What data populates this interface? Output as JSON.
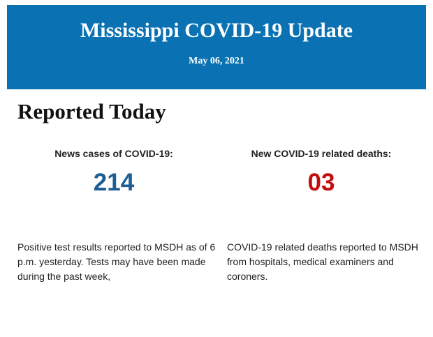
{
  "header": {
    "title": "Mississippi COVID-19 Update",
    "date": "May 06, 2021"
  },
  "section": {
    "title": "Reported Today",
    "stats": [
      {
        "label": "News cases of COVID-19:",
        "value": "214",
        "description": "Positive test results reported to MSDH as of 6 p.m. yesterday. Tests may have been made during the past week,"
      },
      {
        "label": "New COVID-19 related deaths:",
        "value": "03",
        "description": "COVID-19 related deaths reported to MSDH from hospitals, medical examiners and coroners."
      }
    ]
  }
}
